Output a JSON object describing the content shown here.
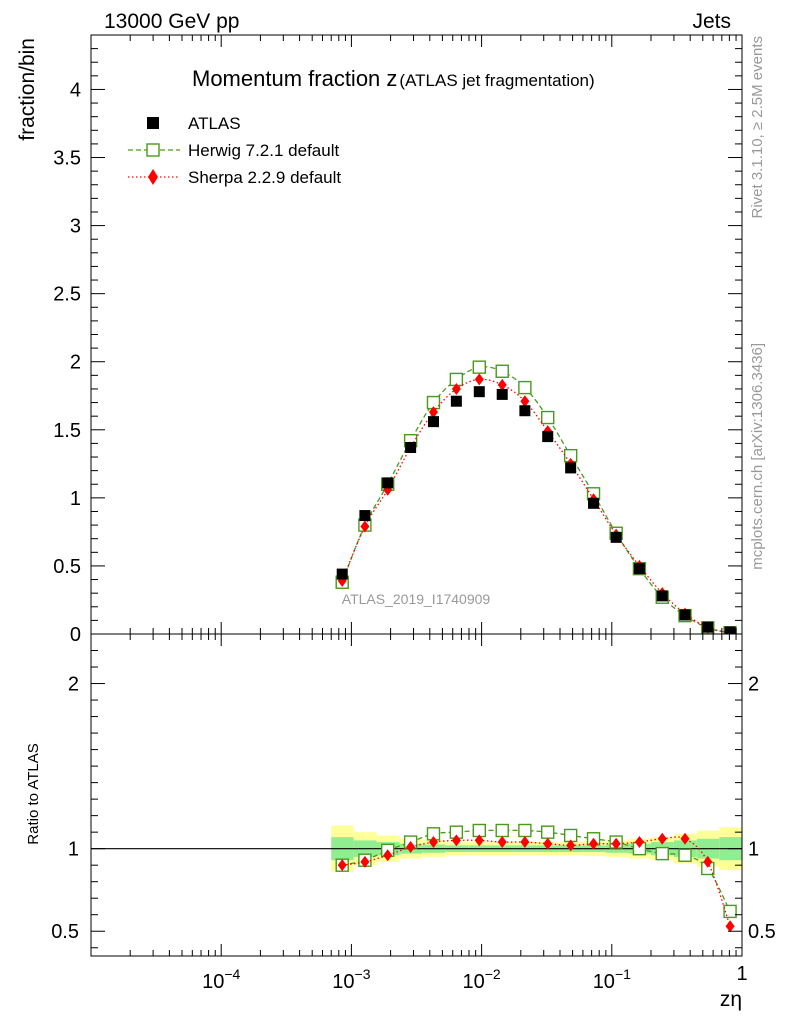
{
  "header": {
    "left": "13000 GeV pp",
    "right": "Jets"
  },
  "side_labels": {
    "rivet": "Rivet 3.1.10, ≥ 2.5M events",
    "mcplots": "mcplots.cern.ch [arXiv:1306.3436]"
  },
  "colors": {
    "data": "#000000",
    "herwig": "#4a9a1a",
    "sherpa": "#ff0000",
    "band_inner": "#90ee90",
    "band_outer": "#ffff99",
    "watermark": "#999999"
  },
  "chart_data": [
    {
      "type": "scatter",
      "panel": "main",
      "title": "Momentum fraction z",
      "title_suffix": "(ATLAS jet fragmentation)",
      "xlabel": "zη",
      "ylabel": "fraction/bin",
      "xscale": "log",
      "xlim": [
        1e-05,
        1
      ],
      "ylim": [
        0,
        4.4
      ],
      "yticks": [
        0,
        0.5,
        1,
        1.5,
        2,
        2.5,
        3,
        3.5,
        4
      ],
      "ytick_labels": [
        "0",
        "0.5",
        "1",
        "1.5",
        "2",
        "2.5",
        "3",
        "3.5",
        "4"
      ],
      "legend_position": "top-left",
      "watermark": "ATLAS_2019_I1740909",
      "x": [
        0.00085,
        0.00127,
        0.0019,
        0.00285,
        0.00427,
        0.0064,
        0.0096,
        0.0144,
        0.0215,
        0.0322,
        0.0483,
        0.0724,
        0.108,
        0.163,
        0.244,
        0.365,
        0.546,
        0.81
      ],
      "series": [
        {
          "name": "ATLAS",
          "style": "data",
          "values": [
            0.44,
            0.87,
            1.11,
            1.37,
            1.56,
            1.71,
            1.78,
            1.76,
            1.64,
            1.45,
            1.22,
            0.96,
            0.71,
            0.48,
            0.28,
            0.14,
            0.05,
            0.015
          ]
        },
        {
          "name": "Herwig 7.2.1 default",
          "style": "herwig",
          "values": [
            0.38,
            0.8,
            1.1,
            1.42,
            1.7,
            1.87,
            1.96,
            1.93,
            1.81,
            1.59,
            1.31,
            1.03,
            0.74,
            0.48,
            0.27,
            0.135,
            0.045,
            0.009
          ]
        },
        {
          "name": "Sherpa 2.2.9 default",
          "style": "sherpa",
          "values": [
            0.39,
            0.79,
            1.06,
            1.37,
            1.63,
            1.8,
            1.87,
            1.83,
            1.71,
            1.49,
            1.25,
            0.99,
            0.73,
            0.5,
            0.3,
            0.15,
            0.048,
            0.008
          ]
        }
      ]
    },
    {
      "type": "scatter",
      "panel": "ratio",
      "ylabel": "Ratio to ATLAS",
      "xlabel": "zη",
      "xscale": "log",
      "xlim": [
        1e-05,
        1
      ],
      "ylim": [
        0.35,
        2.3
      ],
      "yticks": [
        0.5,
        1,
        2
      ],
      "ytick_labels": [
        "0.5",
        "1",
        "2"
      ],
      "xtick_labels": [
        "10^-4",
        "10^-3",
        "10^-2",
        "10^-1",
        "1"
      ],
      "x": [
        0.00085,
        0.00127,
        0.0019,
        0.00285,
        0.00427,
        0.0064,
        0.0096,
        0.0144,
        0.0215,
        0.0322,
        0.0483,
        0.0724,
        0.108,
        0.163,
        0.244,
        0.365,
        0.546,
        0.81
      ],
      "band_edges": [
        0.0007,
        0.00104,
        0.00156,
        0.00234,
        0.0035,
        0.00525,
        0.0079,
        0.0118,
        0.0177,
        0.0266,
        0.0399,
        0.0598,
        0.0897,
        0.1345,
        0.2,
        0.3,
        0.45,
        0.67,
        1.0
      ],
      "band_inner": [
        0.07,
        0.05,
        0.04,
        0.03,
        0.025,
        0.02,
        0.02,
        0.02,
        0.02,
        0.02,
        0.02,
        0.02,
        0.025,
        0.03,
        0.04,
        0.05,
        0.06,
        0.07
      ],
      "band_outer": [
        0.14,
        0.1,
        0.08,
        0.06,
        0.05,
        0.04,
        0.04,
        0.04,
        0.04,
        0.04,
        0.04,
        0.045,
        0.05,
        0.06,
        0.07,
        0.09,
        0.11,
        0.13
      ],
      "series": [
        {
          "name": "Herwig 7.2.1 default",
          "style": "herwig",
          "values": [
            0.9,
            0.93,
            0.99,
            1.04,
            1.09,
            1.1,
            1.11,
            1.11,
            1.11,
            1.1,
            1.08,
            1.06,
            1.04,
            1.0,
            0.97,
            0.96,
            0.88,
            0.62
          ]
        },
        {
          "name": "Sherpa 2.2.9 default",
          "style": "sherpa",
          "values": [
            0.9,
            0.92,
            0.96,
            1.01,
            1.04,
            1.05,
            1.05,
            1.04,
            1.04,
            1.03,
            1.02,
            1.03,
            1.03,
            1.04,
            1.06,
            1.06,
            0.92,
            0.53
          ]
        }
      ]
    }
  ]
}
